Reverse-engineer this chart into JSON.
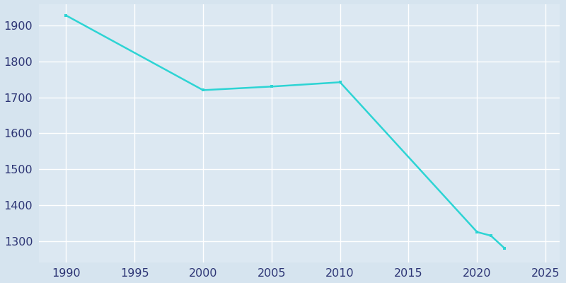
{
  "years": [
    1990,
    2000,
    2005,
    2010,
    2020,
    2021,
    2022
  ],
  "population": [
    1928,
    1720,
    1730,
    1742,
    1325,
    1315,
    1280
  ],
  "line_color": "#2dd4d4",
  "marker": "s",
  "marker_size": 3.5,
  "line_width": 1.8,
  "fig_bg_color": "#d6e4ef",
  "plot_bg_color": "#dce8f2",
  "grid_color": "#ffffff",
  "xlim": [
    1988,
    2026
  ],
  "ylim": [
    1240,
    1960
  ],
  "xticks": [
    1990,
    1995,
    2000,
    2005,
    2010,
    2015,
    2020,
    2025
  ],
  "yticks": [
    1300,
    1400,
    1500,
    1600,
    1700,
    1800,
    1900
  ],
  "tick_color": "#2d3575",
  "tick_fontsize": 11.5
}
